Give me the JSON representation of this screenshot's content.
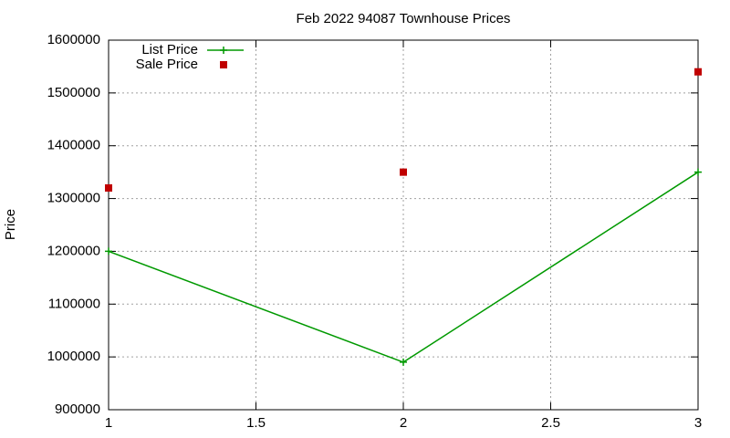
{
  "chart_data": {
    "type": "line",
    "title": "Feb 2022 94087 Townhouse Prices",
    "y_label": "Price",
    "x": [
      1,
      2,
      3
    ],
    "series": [
      {
        "name": "List Price",
        "color": "#009900",
        "style": "linespoints",
        "values": [
          1200000,
          990000,
          1350000
        ]
      },
      {
        "name": "Sale Price",
        "color": "#c00000",
        "style": "points",
        "values": [
          1320000,
          1350000,
          1540000
        ]
      }
    ],
    "xlim": [
      1,
      3
    ],
    "xticks": [
      1,
      1.5,
      2,
      2.5,
      3
    ],
    "ylim": [
      900000,
      1600000
    ],
    "yticks": [
      900000,
      1000000,
      1100000,
      1200000,
      1300000,
      1400000,
      1500000,
      1600000
    ],
    "grid": true,
    "legend": "top-left"
  }
}
